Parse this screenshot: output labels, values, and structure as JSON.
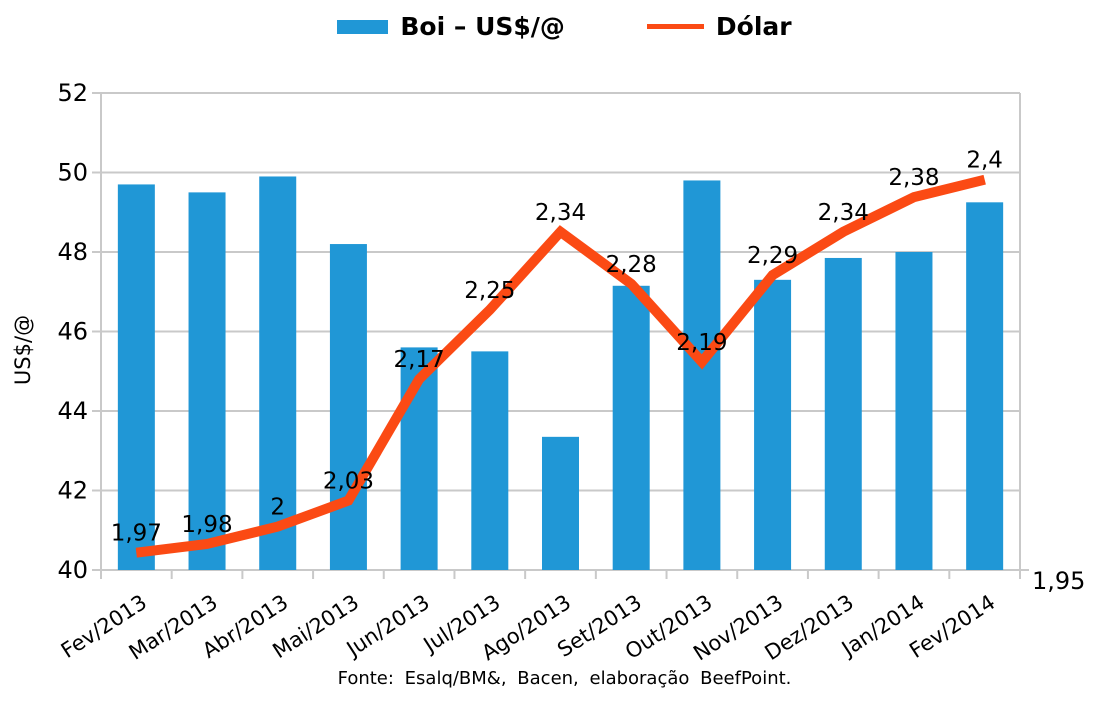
{
  "legend": {
    "bar_label": "Boi – US$/@",
    "line_label": "Dólar"
  },
  "footer": "Fonte: Esalq/BM&, Bacen, elaboração BeefPoint.",
  "colors": {
    "bar": "#2097d6",
    "line": "#fb4a14",
    "grid": "#c9c9c9",
    "text": "#000000"
  },
  "chart_data": {
    "type": "bar",
    "subtype": "bar-line-combo",
    "title": "",
    "ylabel": "US$/@",
    "categories": [
      "Fev/2013",
      "Mar/2013",
      "Abr/2013",
      "Mai/2013",
      "Jun/2013",
      "Jul/2013",
      "Ago/2013",
      "Set/2013",
      "Out/2013",
      "Nov/2013",
      "Dez/2013",
      "Jan/2014",
      "Fev/2014"
    ],
    "series": [
      {
        "name": "Boi – US$/@",
        "type": "bar",
        "axis": "left",
        "values": [
          49.7,
          49.5,
          49.9,
          48.2,
          45.6,
          45.5,
          43.35,
          47.15,
          49.8,
          47.3,
          47.85,
          48.0,
          49.25
        ]
      },
      {
        "name": "Dólar",
        "type": "line",
        "axis": "right",
        "values": [
          1.97,
          1.98,
          2.0,
          2.03,
          2.17,
          2.25,
          2.34,
          2.28,
          2.19,
          2.29,
          2.34,
          2.38,
          2.4
        ],
        "point_labels": [
          "1,97",
          "1,98",
          "2",
          "2,03",
          "2,17",
          "2,25",
          "2,34",
          "2,28",
          "2,19",
          "2,29",
          "2,34",
          "2,38",
          "2,4"
        ]
      }
    ],
    "left_axis": {
      "min": 40,
      "max": 52,
      "ticks": [
        "40",
        "42",
        "44",
        "46",
        "48",
        "50",
        "52"
      ]
    },
    "right_axis": {
      "min": 1.95,
      "max": 2.5,
      "visible_label": "1,95"
    },
    "grid": "horizontal",
    "legend_position": "top"
  }
}
